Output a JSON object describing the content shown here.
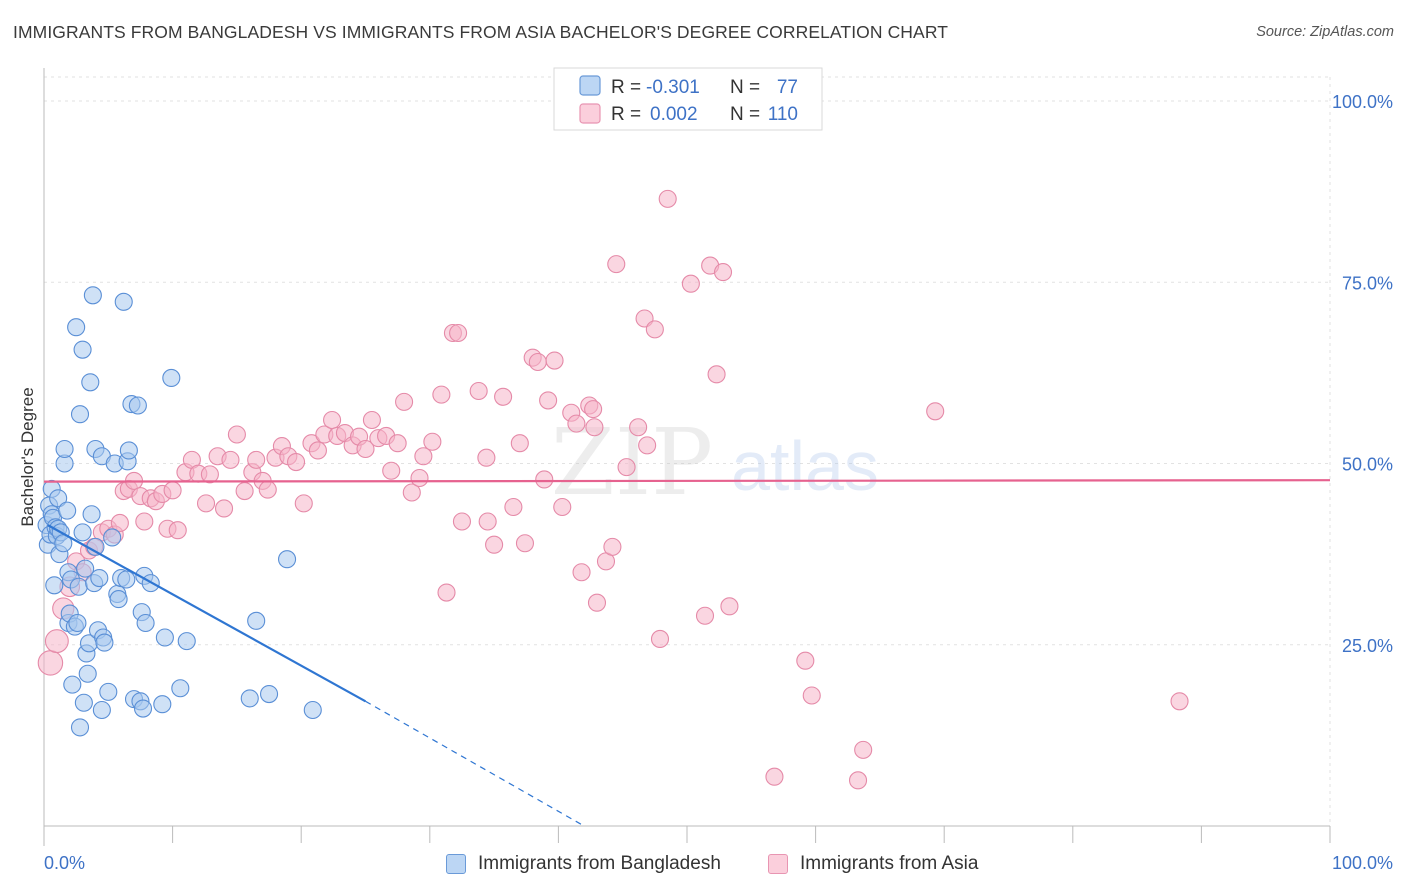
{
  "header": {
    "title": "IMMIGRANTS FROM BANGLADESH VS IMMIGRANTS FROM ASIA BACHELOR'S DEGREE CORRELATION CHART",
    "source": "Source: ZipAtlas.com"
  },
  "watermark": {
    "zip": "ZIP",
    "atlas": "atlas"
  },
  "colors": {
    "blue_fill": "#a8c8ee",
    "blue_stroke": "#5a8fd6",
    "blue_line": "#2f76d2",
    "pink_fill": "#f6b4c9",
    "pink_stroke": "#e58aa8",
    "pink_line": "#e6628f",
    "axis_text": "#3e72c6",
    "grid": "#e2e2e2"
  },
  "legend": {
    "rows": [
      {
        "r_label": "R = ",
        "r_value": "-0.301",
        "n_label": "N = ",
        "n_value": "77"
      },
      {
        "r_label": "R = ",
        "r_value": "0.002",
        "n_label": "N = ",
        "n_value": "110"
      }
    ]
  },
  "chart_data": {
    "type": "scatter",
    "title": "IMMIGRANTS FROM BANGLADESH VS IMMIGRANTS FROM ASIA BACHELOR'S DEGREE CORRELATION CHART",
    "xlabel": "",
    "ylabel": "Bachelor's Degree",
    "xlim": [
      0,
      100
    ],
    "ylim": [
      0,
      104
    ],
    "x_tick_labels": [
      "0.0%",
      "100.0%"
    ],
    "y_ticks": [
      25,
      50,
      75,
      100
    ],
    "y_tick_labels": [
      "25.0%",
      "50.0%",
      "75.0%",
      "100.0%"
    ],
    "grid": true,
    "series": [
      {
        "name": "Immigrants from Bangladesh",
        "color": "#5a8fd6",
        "stats": {
          "R": -0.301,
          "N": 77
        },
        "trend": {
          "x_start": 0.3,
          "y_start": 41.5,
          "x_solid_end": 25.0,
          "y_solid_end": 17.2,
          "x_dash_end": 42.0,
          "y_dash_end": 0.0
        },
        "points": [
          [
            0.2,
            41.5
          ],
          [
            0.3,
            38.8
          ],
          [
            0.4,
            44.2
          ],
          [
            0.5,
            40.2
          ],
          [
            0.6,
            46.5
          ],
          [
            0.6,
            43.0
          ],
          [
            0.7,
            42.5
          ],
          [
            0.8,
            33.2
          ],
          [
            0.9,
            41.2
          ],
          [
            1.0,
            40.0
          ],
          [
            1.1,
            45.2
          ],
          [
            1.1,
            41.0
          ],
          [
            1.2,
            37.5
          ],
          [
            1.3,
            40.5
          ],
          [
            1.5,
            39.0
          ],
          [
            1.6,
            50.0
          ],
          [
            1.6,
            52.0
          ],
          [
            1.8,
            43.5
          ],
          [
            1.9,
            28.0
          ],
          [
            1.9,
            35.0
          ],
          [
            2.0,
            29.3
          ],
          [
            2.1,
            34.0
          ],
          [
            2.2,
            19.5
          ],
          [
            2.4,
            27.5
          ],
          [
            2.5,
            68.8
          ],
          [
            2.6,
            28.0
          ],
          [
            2.7,
            33.0
          ],
          [
            2.8,
            56.8
          ],
          [
            2.8,
            13.6
          ],
          [
            3.0,
            65.7
          ],
          [
            3.0,
            40.5
          ],
          [
            3.1,
            17.0
          ],
          [
            3.2,
            35.5
          ],
          [
            3.3,
            23.8
          ],
          [
            3.4,
            21.0
          ],
          [
            3.5,
            25.2
          ],
          [
            3.6,
            61.2
          ],
          [
            3.7,
            43.0
          ],
          [
            3.8,
            73.2
          ],
          [
            3.9,
            33.5
          ],
          [
            4.0,
            38.5
          ],
          [
            4.0,
            52.0
          ],
          [
            4.2,
            27.0
          ],
          [
            4.3,
            34.2
          ],
          [
            4.5,
            16.0
          ],
          [
            4.5,
            51.0
          ],
          [
            4.6,
            26.0
          ],
          [
            4.7,
            25.3
          ],
          [
            5.0,
            18.5
          ],
          [
            5.5,
            50.0
          ],
          [
            5.7,
            32.0
          ],
          [
            5.8,
            31.3
          ],
          [
            6.0,
            34.2
          ],
          [
            6.2,
            72.3
          ],
          [
            6.4,
            34.0
          ],
          [
            6.5,
            50.3
          ],
          [
            6.6,
            51.8
          ],
          [
            6.8,
            58.2
          ],
          [
            7.0,
            17.5
          ],
          [
            7.3,
            58.0
          ],
          [
            7.5,
            17.2
          ],
          [
            7.6,
            29.5
          ],
          [
            7.7,
            16.2
          ],
          [
            7.8,
            34.5
          ],
          [
            7.9,
            28.0
          ],
          [
            8.3,
            33.5
          ],
          [
            9.2,
            16.8
          ],
          [
            9.4,
            26.0
          ],
          [
            9.9,
            61.8
          ],
          [
            10.6,
            19.0
          ],
          [
            11.1,
            25.5
          ],
          [
            16.0,
            17.6
          ],
          [
            16.5,
            28.3
          ],
          [
            17.5,
            18.2
          ],
          [
            18.9,
            36.8
          ],
          [
            20.9,
            16.0
          ],
          [
            5.3,
            39.8
          ]
        ]
      },
      {
        "name": "Immigrants from Asia",
        "color": "#e58aa8",
        "stats": {
          "R": 0.002,
          "N": 110
        },
        "trend": {
          "x_start": 0,
          "y_start": 47.5,
          "x_end": 100,
          "y_end": 47.7
        },
        "points": [
          [
            0.5,
            22.5
          ],
          [
            1.0,
            25.5
          ],
          [
            1.5,
            30.0
          ],
          [
            2.0,
            33.0
          ],
          [
            2.5,
            36.5
          ],
          [
            3.0,
            35.0
          ],
          [
            3.5,
            38.0
          ],
          [
            3.9,
            38.5
          ],
          [
            4.5,
            40.5
          ],
          [
            5.0,
            41.0
          ],
          [
            5.5,
            40.2
          ],
          [
            5.9,
            41.8
          ],
          [
            6.2,
            46.2
          ],
          [
            6.6,
            46.5
          ],
          [
            7.0,
            47.6
          ],
          [
            7.5,
            45.5
          ],
          [
            7.8,
            42.0
          ],
          [
            8.3,
            45.2
          ],
          [
            8.7,
            44.8
          ],
          [
            9.2,
            45.8
          ],
          [
            9.6,
            41.0
          ],
          [
            10.0,
            46.3
          ],
          [
            10.4,
            40.8
          ],
          [
            11.0,
            48.8
          ],
          [
            11.5,
            50.5
          ],
          [
            12.0,
            48.6
          ],
          [
            12.6,
            44.5
          ],
          [
            12.9,
            48.5
          ],
          [
            13.5,
            51.0
          ],
          [
            14.0,
            43.8
          ],
          [
            14.5,
            50.5
          ],
          [
            15.0,
            54.0
          ],
          [
            15.6,
            46.2
          ],
          [
            16.2,
            48.8
          ],
          [
            16.5,
            50.5
          ],
          [
            17.0,
            47.6
          ],
          [
            17.4,
            46.4
          ],
          [
            18.0,
            50.8
          ],
          [
            18.5,
            52.4
          ],
          [
            19.0,
            51.0
          ],
          [
            19.6,
            50.2
          ],
          [
            20.2,
            44.5
          ],
          [
            20.8,
            52.8
          ],
          [
            21.3,
            51.8
          ],
          [
            21.8,
            54.0
          ],
          [
            22.4,
            56.0
          ],
          [
            22.8,
            53.8
          ],
          [
            23.4,
            54.2
          ],
          [
            24.0,
            52.5
          ],
          [
            24.5,
            53.7
          ],
          [
            25.0,
            52.0
          ],
          [
            25.5,
            56.0
          ],
          [
            26.0,
            53.5
          ],
          [
            26.6,
            53.8
          ],
          [
            27.0,
            49.0
          ],
          [
            27.5,
            52.8
          ],
          [
            28.0,
            58.5
          ],
          [
            28.6,
            46.0
          ],
          [
            29.2,
            48.0
          ],
          [
            29.5,
            51.0
          ],
          [
            30.2,
            53.0
          ],
          [
            30.9,
            59.5
          ],
          [
            31.3,
            32.2
          ],
          [
            31.8,
            68.0
          ],
          [
            32.2,
            68.0
          ],
          [
            32.5,
            42.0
          ],
          [
            33.8,
            60.0
          ],
          [
            34.5,
            42.0
          ],
          [
            35.0,
            38.8
          ],
          [
            34.4,
            50.8
          ],
          [
            35.7,
            59.2
          ],
          [
            36.5,
            44.0
          ],
          [
            37.0,
            52.8
          ],
          [
            37.4,
            39.0
          ],
          [
            38.0,
            64.6
          ],
          [
            38.4,
            64.0
          ],
          [
            38.9,
            47.8
          ],
          [
            39.2,
            58.7
          ],
          [
            39.7,
            64.2
          ],
          [
            40.3,
            44.0
          ],
          [
            41.0,
            57.0
          ],
          [
            41.4,
            55.5
          ],
          [
            41.8,
            35.0
          ],
          [
            42.4,
            58.0
          ],
          [
            42.7,
            57.5
          ],
          [
            42.8,
            55.0
          ],
          [
            43.0,
            30.8
          ],
          [
            43.7,
            36.5
          ],
          [
            44.2,
            38.5
          ],
          [
            44.5,
            77.5
          ],
          [
            45.3,
            49.5
          ],
          [
            46.2,
            55.0
          ],
          [
            46.7,
            70.0
          ],
          [
            46.9,
            52.5
          ],
          [
            47.5,
            68.5
          ],
          [
            47.9,
            25.8
          ],
          [
            48.5,
            86.5
          ],
          [
            50.3,
            74.8
          ],
          [
            51.4,
            29.0
          ],
          [
            51.8,
            77.3
          ],
          [
            52.3,
            62.3
          ],
          [
            52.8,
            76.4
          ],
          [
            53.3,
            30.3
          ],
          [
            59.2,
            22.8
          ],
          [
            59.7,
            18.0
          ],
          [
            63.7,
            10.5
          ],
          [
            69.3,
            57.2
          ],
          [
            88.3,
            17.2
          ],
          [
            56.8,
            6.8
          ],
          [
            63.3,
            6.3
          ]
        ]
      }
    ]
  }
}
